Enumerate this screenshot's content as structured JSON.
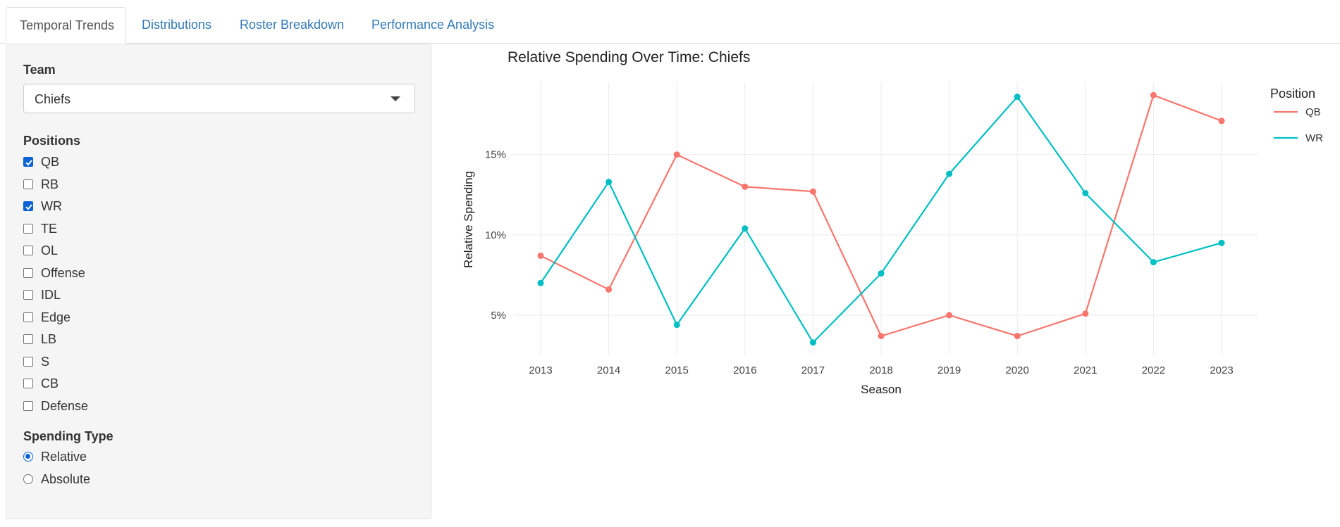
{
  "tabs": [
    {
      "label": "Temporal Trends",
      "active": true
    },
    {
      "label": "Distributions",
      "active": false
    },
    {
      "label": "Roster Breakdown",
      "active": false
    },
    {
      "label": "Performance Analysis",
      "active": false
    }
  ],
  "sidebar": {
    "team_label": "Team",
    "team_value": "Chiefs",
    "positions_label": "Positions",
    "positions": [
      {
        "label": "QB",
        "checked": true
      },
      {
        "label": "RB",
        "checked": false
      },
      {
        "label": "WR",
        "checked": true
      },
      {
        "label": "TE",
        "checked": false
      },
      {
        "label": "OL",
        "checked": false
      },
      {
        "label": "Offense",
        "checked": false
      },
      {
        "label": "IDL",
        "checked": false
      },
      {
        "label": "Edge",
        "checked": false
      },
      {
        "label": "LB",
        "checked": false
      },
      {
        "label": "S",
        "checked": false
      },
      {
        "label": "CB",
        "checked": false
      },
      {
        "label": "Defense",
        "checked": false
      }
    ],
    "spending_type_label": "Spending Type",
    "spending_types": [
      {
        "label": "Relative",
        "selected": true
      },
      {
        "label": "Absolute",
        "selected": false
      }
    ]
  },
  "chart_data": {
    "type": "line",
    "title": "Relative Spending Over Time: Chiefs",
    "xlabel": "Season",
    "ylabel": "Relative Spending",
    "x": [
      2013,
      2014,
      2015,
      2016,
      2017,
      2018,
      2019,
      2020,
      2021,
      2022,
      2023
    ],
    "y_ticks": [
      5,
      10,
      15
    ],
    "y_tick_labels": [
      "5%",
      "10%",
      "15%"
    ],
    "ylim": [
      2.5,
      19.5
    ],
    "grid": true,
    "legend_title": "Position",
    "legend_position": "right",
    "series": [
      {
        "name": "QB",
        "color": "#F8766D",
        "values": [
          8.7,
          6.6,
          15.0,
          13.0,
          12.7,
          3.7,
          5.0,
          3.7,
          5.1,
          18.7,
          17.1
        ]
      },
      {
        "name": "WR",
        "color": "#00BFC4",
        "values": [
          7.0,
          13.3,
          4.4,
          10.4,
          3.3,
          7.6,
          13.8,
          18.6,
          12.6,
          8.3,
          9.5
        ]
      }
    ]
  }
}
